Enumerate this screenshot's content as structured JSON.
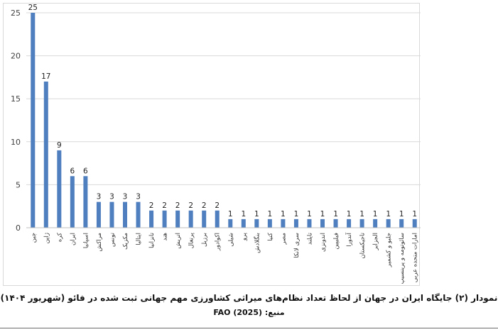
{
  "chart_data": {
    "type": "bar",
    "categories": [
      "چین",
      "ژاپن",
      "کره",
      "ایران",
      "اسپانیا",
      "مراکش",
      "تونس",
      "مکزیک",
      "ایتالیا",
      "تانزانیا",
      "هند",
      "اتریش",
      "پرتغال",
      "برزیل",
      "اکوادور",
      "شیلی",
      "پرو",
      "بنگلادش",
      "کنیا",
      "مصر",
      "سری لانکا",
      "تایلند",
      "اندونزی",
      "فیلیپین",
      "آندورا",
      "تاجیکستان",
      "الجزایر",
      "جلبو و کشمیر",
      "سائوتومه و پرینسیپ",
      "امارات متحده عربی"
    ],
    "values": [
      25,
      17,
      9,
      6,
      6,
      3,
      3,
      3,
      3,
      2,
      2,
      2,
      2,
      2,
      2,
      1,
      1,
      1,
      1,
      1,
      1,
      1,
      1,
      1,
      1,
      1,
      1,
      1,
      1,
      1
    ],
    "ylim": [
      0,
      25
    ],
    "yticks": [
      "0",
      "5",
      "10",
      "15",
      "20",
      "25"
    ],
    "grid": true,
    "legend": "none",
    "bar_color": "#4f7fbf",
    "title": "",
    "xlabel": "",
    "ylabel": ""
  },
  "caption": {
    "title": "نمودار (۲) جایگاه ایران در جهان از لحاظ تعداد نظام‌های میراثی کشاورزی مهم جهانی ثبت شده در فائو (شهریور ۱۴۰۴)",
    "source": "منبع:  FAO (2025)"
  }
}
